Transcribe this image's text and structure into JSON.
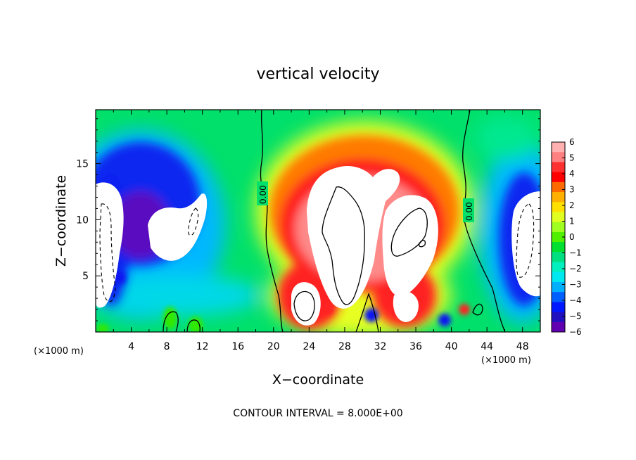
{
  "chart_data": {
    "type": "heatmap",
    "title": "vertical velocity",
    "xlabel": "X−coordinate",
    "ylabel": "Z−coordinate",
    "x_unit": "(×1000 m)",
    "xlim": [
      0,
      50
    ],
    "ylim": [
      0,
      19.8
    ],
    "x_ticks": [
      "4",
      "8",
      "12",
      "16",
      "20",
      "24",
      "28",
      "32",
      "36",
      "40",
      "44",
      "48"
    ],
    "y_ticks": [
      "5",
      "10",
      "15"
    ],
    "colorbar": {
      "min": -6,
      "max": 6,
      "ticks": [
        "6",
        "5",
        "4",
        "3",
        "2",
        "1",
        "0",
        "−1",
        "−2",
        "−3",
        "−4",
        "−5",
        "−6"
      ],
      "colors_top_to_bottom": [
        "#ffb0b0",
        "#ff8080",
        "#ff3030",
        "#ff0000",
        "#ff6a00",
        "#ffb000",
        "#ffe000",
        "#e0ff20",
        "#a0ff20",
        "#50f000",
        "#00e030",
        "#00e080",
        "#00f0c0",
        "#00e8f0",
        "#00b0ff",
        "#0060ff",
        "#0018ff",
        "#2010c0",
        "#6000b0"
      ]
    },
    "contour_labels": [
      "0.00",
      "0.00"
    ],
    "features": [
      {
        "kind": "updraft",
        "value": 8,
        "x_range": [
          21,
          40
        ],
        "z_range": [
          0.5,
          14
        ]
      },
      {
        "kind": "downdraft",
        "value": -8,
        "x_range": [
          0,
          3
        ],
        "z_range": [
          2,
          13
        ]
      },
      {
        "kind": "downdraft",
        "value": -8,
        "x_range": [
          4.5,
          10
        ],
        "z_range": [
          6.5,
          12
        ]
      },
      {
        "kind": "downdraft",
        "value": -8,
        "x_range": [
          46,
          50
        ],
        "z_range": [
          3.5,
          13
        ]
      }
    ]
  },
  "contour_interval": "CONTOUR INTERVAL = 8.000E+00"
}
